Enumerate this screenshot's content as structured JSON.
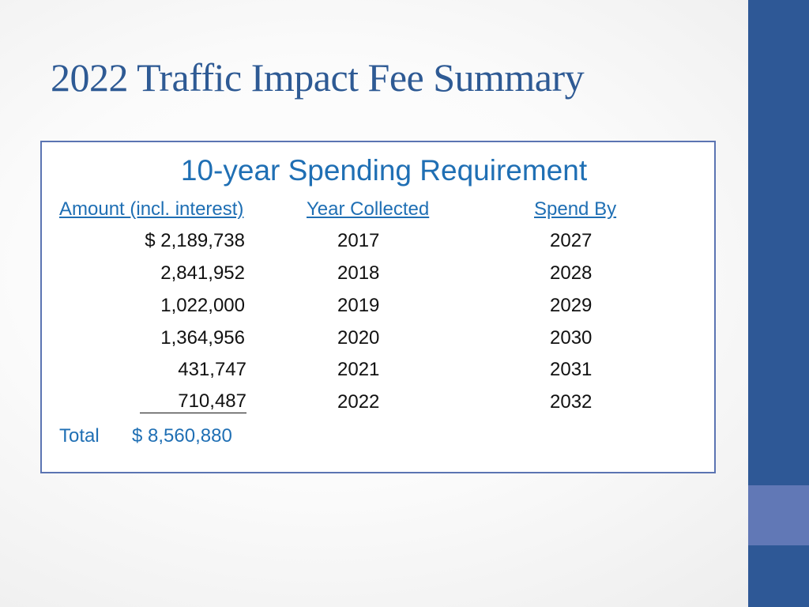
{
  "slide": {
    "title": "2022 Traffic Impact Fee Summary"
  },
  "box": {
    "heading": "10-year Spending Requirement",
    "columns": {
      "amount": "Amount (incl. interest)",
      "year_collected": "Year Collected",
      "spend_by": "Spend By"
    },
    "rows": [
      {
        "amount": "$ 2,189,738",
        "year_collected": "2017",
        "spend_by": "2027"
      },
      {
        "amount": "2,841,952",
        "year_collected": "2018",
        "spend_by": "2028"
      },
      {
        "amount": "1,022,000",
        "year_collected": "2019",
        "spend_by": "2029"
      },
      {
        "amount": "1,364,956",
        "year_collected": "2020",
        "spend_by": "2030"
      },
      {
        "amount": "431,747",
        "year_collected": "2021",
        "spend_by": "2031"
      },
      {
        "amount": "710,487",
        "year_collected": "2022",
        "spend_by": "2032"
      }
    ],
    "total": {
      "label": "Total",
      "value": "$ 8,560,880"
    }
  },
  "colors": {
    "title": "#2e5a94",
    "accent_text": "#1f6fb4",
    "sidebar": "#2e5896",
    "sidebar_accent": "#6178b6",
    "box_border": "#5b74b2"
  }
}
